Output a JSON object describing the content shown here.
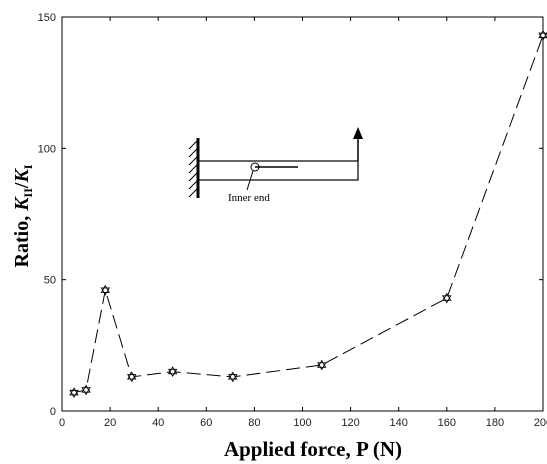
{
  "chart_data": {
    "type": "line",
    "title": "",
    "xlabel": "Applied force, P (N)",
    "ylabel_main": "Ratio, ",
    "ylabel_k2": "K",
    "ylabel_k2_sub": "II",
    "ylabel_sep": "/",
    "ylabel_k1": "K",
    "ylabel_k1_sub": "I",
    "xlim": [
      0,
      200
    ],
    "ylim": [
      0,
      150
    ],
    "xticks": [
      "0",
      "20",
      "40",
      "60",
      "80",
      "100",
      "120",
      "140",
      "160",
      "180",
      "200"
    ],
    "xtick_values": [
      0,
      20,
      40,
      60,
      80,
      100,
      120,
      140,
      160,
      180,
      200
    ],
    "yticks": [
      "0",
      "50",
      "100",
      "150"
    ],
    "ytick_values": [
      0,
      50,
      100,
      150
    ],
    "grid": false,
    "series": [
      {
        "line_style": "dashed",
        "marker": "star",
        "color": "#000000",
        "x": [
          5,
          10,
          18,
          29,
          46,
          71,
          108,
          160,
          200
        ],
        "y": [
          7,
          8,
          46,
          13,
          15,
          13,
          17.5,
          43,
          143
        ]
      }
    ],
    "annotation": {
      "label": "Inner end"
    }
  }
}
